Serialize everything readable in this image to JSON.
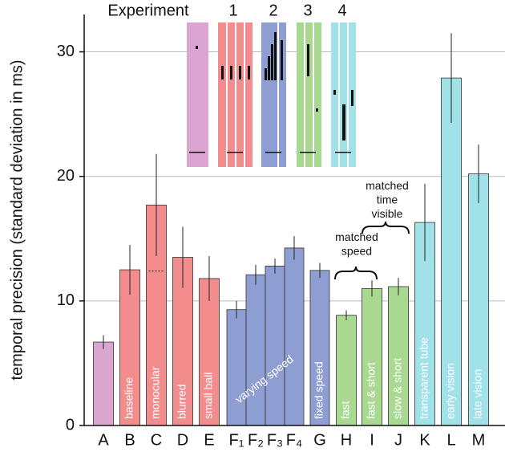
{
  "chart_data": {
    "type": "bar",
    "y_label": "temporal precision (standard deviation in ms)",
    "categories": [
      "A",
      "B",
      "C",
      "D",
      "E",
      "F₁",
      "F₂",
      "F₃",
      "F₄",
      "G",
      "H",
      "I",
      "J",
      "K",
      "L",
      "M"
    ],
    "values": [
      6.7,
      12.5,
      17.7,
      13.5,
      11.8,
      9.3,
      12.1,
      12.8,
      14.25,
      12.45,
      8.85,
      11.0,
      11.15,
      16.3,
      27.9,
      20.2
    ],
    "errors": [
      0.55,
      2.0,
      4.1,
      2.45,
      1.8,
      0.7,
      0.8,
      0.6,
      0.95,
      0.6,
      0.4,
      0.65,
      0.7,
      3.1,
      3.6,
      2.35
    ],
    "reference": [
      null,
      null,
      12.4,
      null,
      null,
      null,
      null,
      null,
      null,
      null,
      null,
      null,
      null,
      null,
      null,
      null
    ],
    "colors": [
      "#dba5d1",
      "#f38d8d",
      "#f38d8d",
      "#f38d8d",
      "#f38d8d",
      "#8f9ed2",
      "#8f9ed2",
      "#8f9ed2",
      "#8f9ed2",
      "#8f9ed2",
      "#a9d991",
      "#a9d991",
      "#a9d991",
      "#a0e2e8",
      "#a0e2e8",
      "#a0e2e8"
    ],
    "bar_labels": [
      null,
      "baseline",
      "monocular",
      "blurred",
      "small ball",
      "varying speed",
      null,
      null,
      null,
      "fixed speed",
      "fast",
      "fast & short",
      "slow & short",
      "transparent tube",
      "early vision",
      "late vision"
    ],
    "annotations": [
      "matched speed",
      "matched time visible"
    ],
    "inset": {
      "title": "Experiment",
      "labels": [
        "1",
        "2",
        "3",
        "4"
      ]
    },
    "ylim": [
      0,
      33
    ],
    "yticks": [
      0,
      10,
      20,
      30
    ],
    "grid": true
  }
}
